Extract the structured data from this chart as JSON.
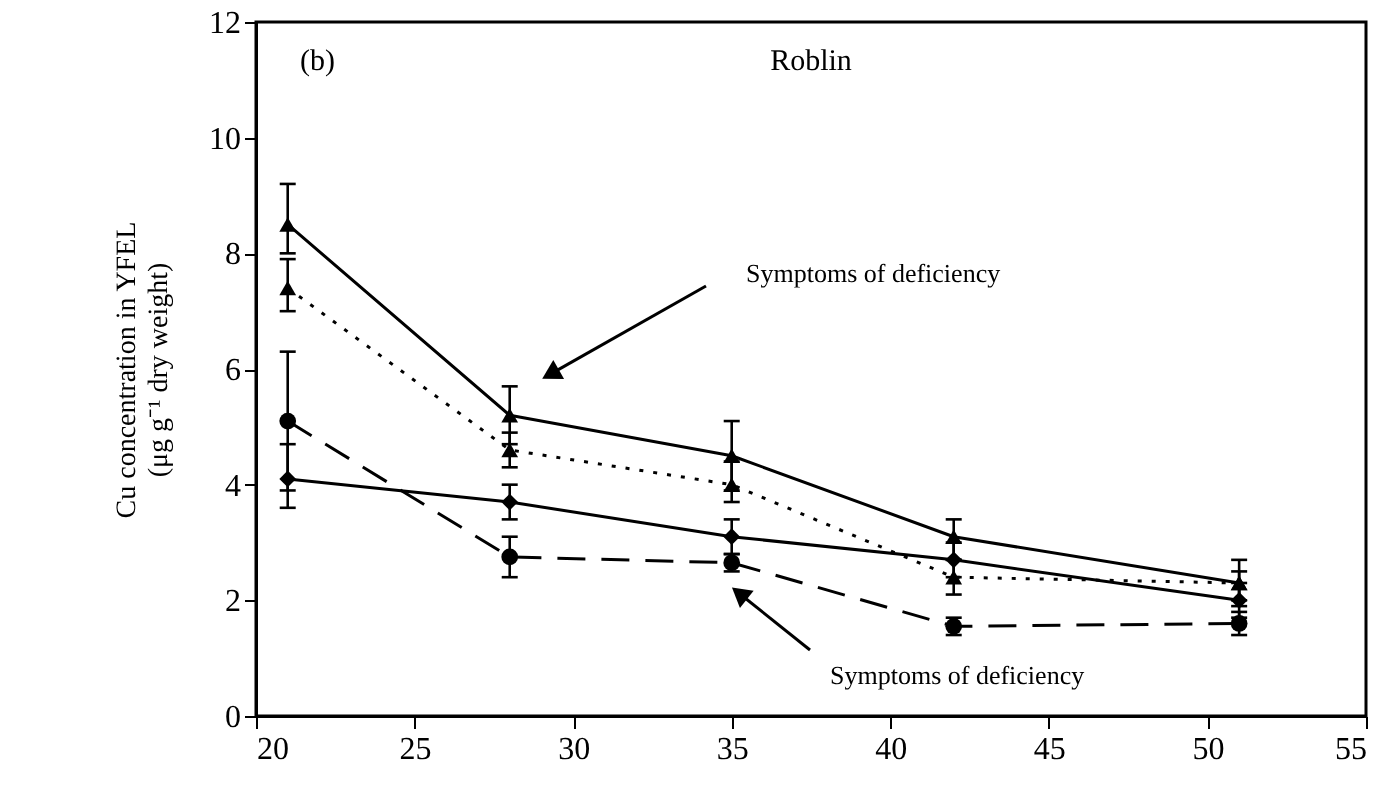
{
  "chart_data": {
    "type": "line",
    "ylabel": "Cu concentration in YFEL\n(μg g⁻¹ dry weight)",
    "x": [
      21,
      28,
      35,
      42,
      51
    ],
    "series": [
      {
        "color": "#000000",
        "line_style": "solid",
        "marker": "triangle",
        "values": [
          8.5,
          5.2,
          4.5,
          3.1,
          2.3
        ],
        "errors": [
          [
            8.0,
            9.2
          ],
          [
            4.7,
            5.7
          ],
          [
            3.9,
            5.1
          ],
          [
            2.7,
            3.4
          ],
          [
            1.9,
            2.7
          ]
        ]
      },
      {
        "color": "#000000",
        "line_style": "dotted",
        "marker": "triangle",
        "values": [
          7.4,
          4.6,
          4.0,
          2.4,
          2.3
        ],
        "errors": [
          [
            7.0,
            7.9
          ],
          [
            4.3,
            4.9
          ],
          [
            3.7,
            4.4
          ],
          [
            2.1,
            2.7
          ],
          [
            2.0,
            2.5
          ]
        ]
      },
      {
        "color": "#000000",
        "line_style": "dashed",
        "marker": "circle",
        "values": [
          5.1,
          2.75,
          2.65,
          1.55,
          1.6
        ],
        "errors": [
          [
            3.9,
            6.3
          ],
          [
            2.4,
            3.1
          ],
          [
            2.5,
            2.8
          ],
          [
            1.4,
            1.7
          ],
          [
            1.4,
            1.8
          ]
        ]
      },
      {
        "color": "#000000",
        "line_style": "solid",
        "marker": "diamond",
        "values": [
          4.1,
          3.7,
          3.1,
          2.7,
          2.0
        ],
        "errors": [
          [
            3.6,
            4.7
          ],
          [
            3.4,
            4.0
          ],
          [
            2.8,
            3.4
          ],
          [
            2.4,
            3.0
          ],
          [
            1.7,
            2.3
          ]
        ]
      }
    ],
    "xlim": [
      20,
      55
    ],
    "xticks": [
      20,
      25,
      30,
      35,
      40,
      45,
      50,
      55
    ],
    "ylim": [
      0,
      12
    ],
    "yticks": [
      0,
      2,
      4,
      6,
      8,
      10,
      12
    ],
    "grid": false,
    "annotations": [
      "(b)",
      "Roblin",
      "Symptoms of deficiency",
      "Symptoms of deficiency"
    ]
  }
}
